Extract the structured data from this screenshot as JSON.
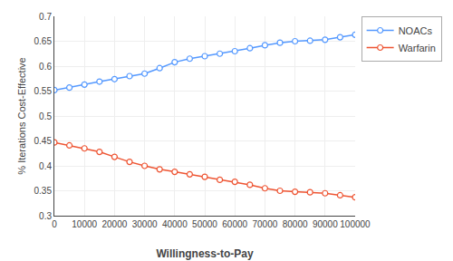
{
  "chart_data": {
    "type": "line",
    "title": "",
    "xlabel": "Willingness-to-Pay",
    "ylabel": "% Iterations Cost-Effective",
    "x": [
      0,
      5000,
      10000,
      15000,
      20000,
      25000,
      30000,
      35000,
      40000,
      45000,
      50000,
      55000,
      60000,
      65000,
      70000,
      75000,
      80000,
      85000,
      90000,
      95000,
      100000
    ],
    "series": [
      {
        "name": "NOACs",
        "color": "#5599ff",
        "marker": "open circle",
        "values": [
          0.552,
          0.557,
          0.563,
          0.569,
          0.574,
          0.58,
          0.585,
          0.596,
          0.608,
          0.615,
          0.62,
          0.625,
          0.63,
          0.636,
          0.642,
          0.647,
          0.65,
          0.651,
          0.653,
          0.658,
          0.663
        ]
      },
      {
        "name": "Warfarin",
        "color": "#ee5533",
        "marker": "open circle",
        "values": [
          0.447,
          0.441,
          0.435,
          0.428,
          0.418,
          0.408,
          0.4,
          0.393,
          0.388,
          0.383,
          0.378,
          0.372,
          0.368,
          0.362,
          0.355,
          0.35,
          0.348,
          0.347,
          0.345,
          0.341,
          0.337
        ]
      }
    ],
    "xlim": [
      0,
      100000
    ],
    "xticks": [
      0,
      10000,
      20000,
      30000,
      40000,
      50000,
      60000,
      70000,
      80000,
      90000,
      100000
    ],
    "ylim": [
      0.3,
      0.7
    ],
    "yticks": [
      0.3,
      0.35,
      0.4,
      0.45,
      0.5,
      0.55,
      0.6,
      0.65,
      0.7
    ],
    "grid": true,
    "legend": "upper right"
  }
}
